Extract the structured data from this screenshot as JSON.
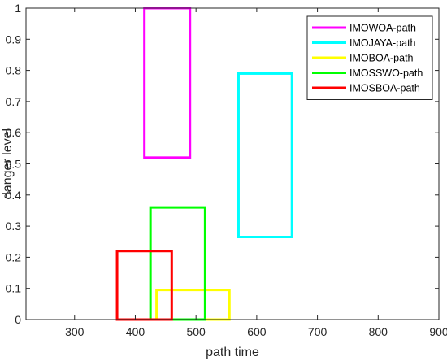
{
  "chart_data": {
    "type": "bar",
    "subtype": "range-rectangles",
    "title": "",
    "xlabel": "path time",
    "ylabel": "danger level",
    "xlim": [
      220,
      900
    ],
    "ylim": [
      0,
      1
    ],
    "xticks": [
      300,
      400,
      500,
      600,
      700,
      800,
      900
    ],
    "yticks": [
      0,
      0.1,
      0.2,
      0.3,
      0.4,
      0.5,
      0.6,
      0.7,
      0.8,
      0.9,
      1
    ],
    "xtick_labels": [
      "300",
      "400",
      "500",
      "600",
      "700",
      "800",
      "900"
    ],
    "ytick_labels": [
      "0",
      "0.1",
      "0.2",
      "0.3",
      "0.4",
      "0.5",
      "0.6",
      "0.7",
      "0.8",
      "0.9",
      "1"
    ],
    "grid": false,
    "legend_position": "top-right",
    "series": [
      {
        "name": "IMOWOA-path",
        "color": "#ff00ff",
        "x_range": [
          415,
          490
        ],
        "y_range": [
          0.52,
          1.0
        ]
      },
      {
        "name": "IMOJAYA-path",
        "color": "#00ffff",
        "x_range": [
          570,
          658
        ],
        "y_range": [
          0.265,
          0.79
        ]
      },
      {
        "name": "IMOBOA-path",
        "color": "#ffff00",
        "x_range": [
          435,
          555
        ],
        "y_range": [
          0.0,
          0.095
        ]
      },
      {
        "name": "IMOSSWO-path",
        "color": "#00ff00",
        "x_range": [
          425,
          515
        ],
        "y_range": [
          0.0,
          0.36
        ]
      },
      {
        "name": "IMOSBOA-path",
        "color": "#ff0000",
        "x_range": [
          370,
          460
        ],
        "y_range": [
          0.0,
          0.22
        ]
      }
    ],
    "draw_order": [
      0,
      1,
      2,
      3,
      4
    ]
  }
}
